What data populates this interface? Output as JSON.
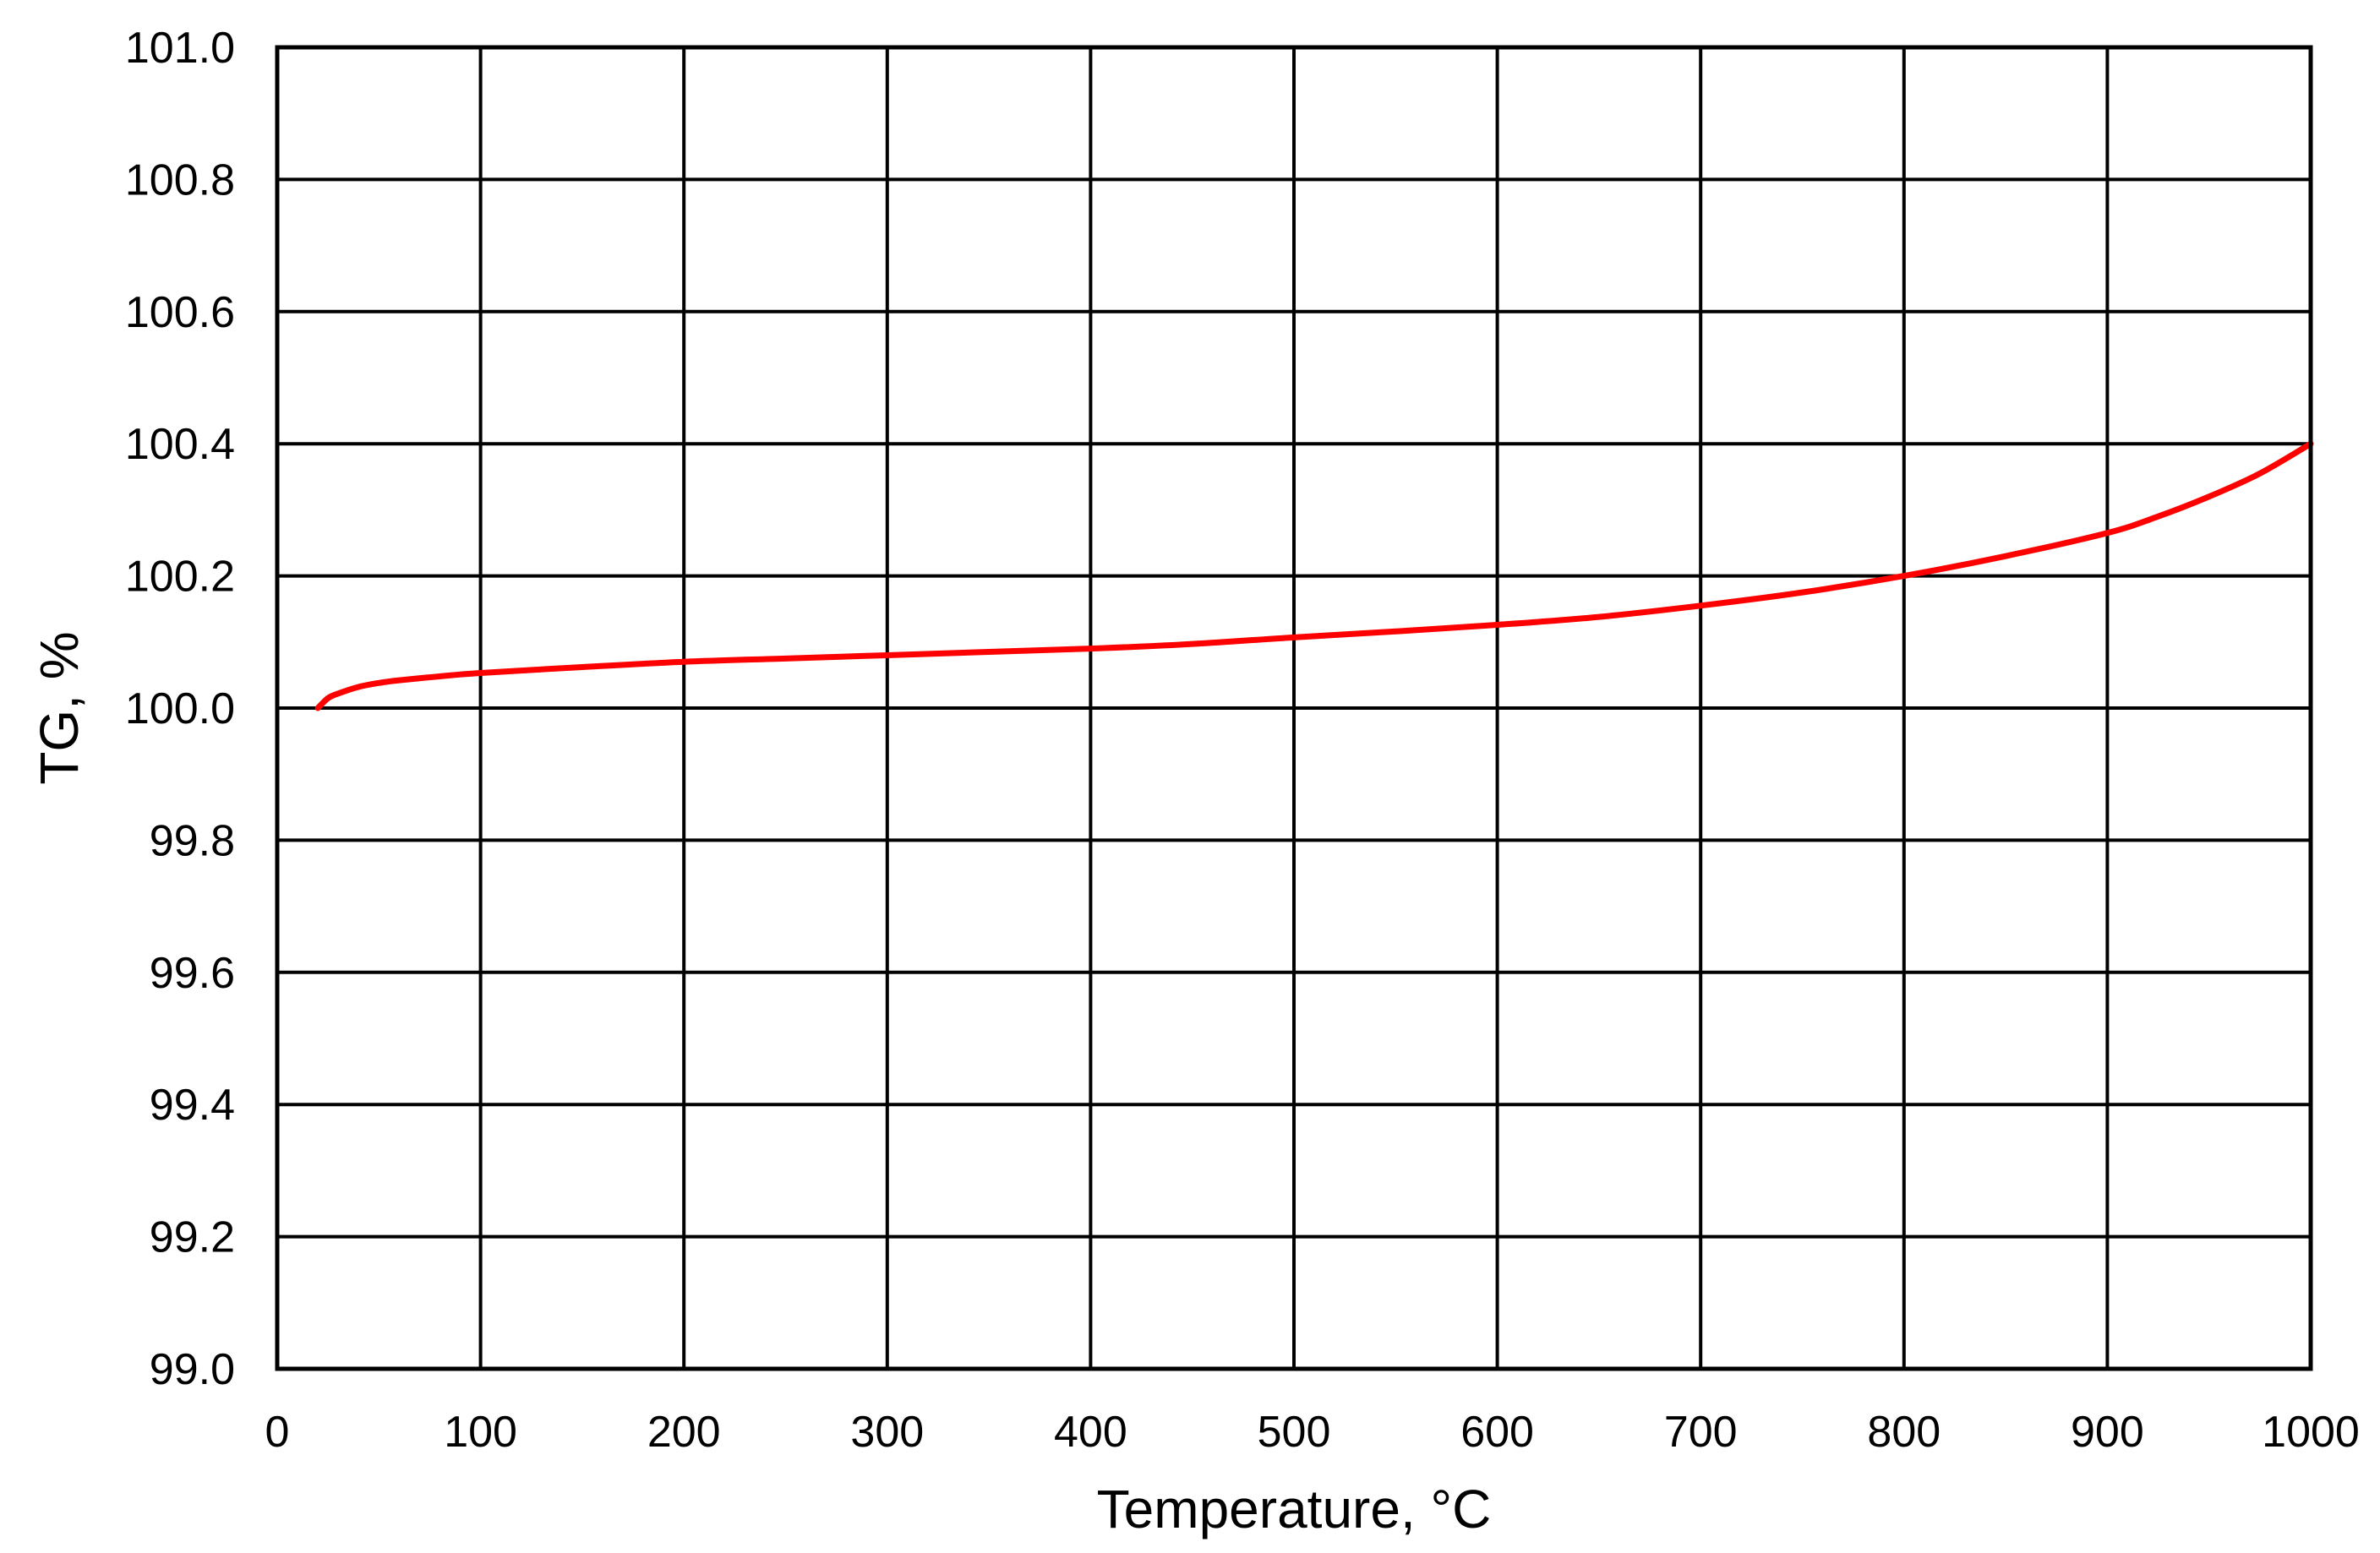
{
  "chart_data": {
    "type": "line",
    "title": "",
    "xlabel": "Temperature, °C",
    "ylabel": "TG, %",
    "xlim": [
      0,
      1000
    ],
    "ylim": [
      99.0,
      101.0
    ],
    "x_ticks": [
      0,
      100,
      200,
      300,
      400,
      500,
      600,
      700,
      800,
      900,
      1000
    ],
    "x_tick_labels": [
      "0",
      "100",
      "200",
      "300",
      "400",
      "500",
      "600",
      "700",
      "800",
      "900",
      "1000"
    ],
    "y_ticks": [
      99.0,
      99.2,
      99.4,
      99.6,
      99.8,
      100.0,
      100.2,
      100.4,
      100.6,
      100.8,
      101.0
    ],
    "y_tick_labels": [
      "99.0",
      "99.2",
      "99.4",
      "99.6",
      "99.8",
      "100.0",
      "100.2",
      "100.4",
      "100.6",
      "100.8",
      "101.0"
    ],
    "grid": true,
    "legend": "none",
    "series": [
      {
        "color": "#ff0000",
        "x": [
          20,
          25,
          30,
          40,
          50,
          60,
          80,
          100,
          150,
          200,
          250,
          300,
          350,
          400,
          450,
          500,
          550,
          600,
          650,
          700,
          750,
          800,
          850,
          900,
          925,
          950,
          975,
          1000
        ],
        "y": [
          100.0,
          100.015,
          100.022,
          100.032,
          100.038,
          100.042,
          100.048,
          100.053,
          100.062,
          100.07,
          100.075,
          100.08,
          100.085,
          100.09,
          100.097,
          100.107,
          100.116,
          100.126,
          100.138,
          100.155,
          100.175,
          100.2,
          100.23,
          100.265,
          100.29,
          100.32,
          100.355,
          100.4
        ]
      }
    ]
  }
}
